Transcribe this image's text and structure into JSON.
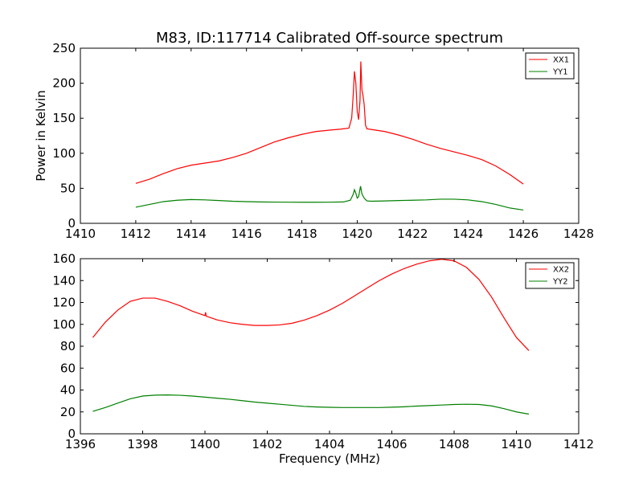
{
  "chart_data": [
    {
      "type": "line",
      "title": "M83, ID:117714 Calibrated Off-source spectrum",
      "xlabel": "",
      "ylabel": "Power in Kelvin",
      "xlim": [
        1410,
        1428
      ],
      "ylim": [
        0,
        250
      ],
      "xticks": [
        "1410",
        "1412",
        "1414",
        "1416",
        "1418",
        "1420",
        "1422",
        "1424",
        "1426",
        "1428"
      ],
      "yticks": [
        "0",
        "50",
        "100",
        "150",
        "200",
        "250"
      ],
      "grid": false,
      "legend_position": "top-right",
      "series": [
        {
          "name": "XX1",
          "color": "#ff0000",
          "points": [
            [
              1412.0,
              57
            ],
            [
              1412.5,
              63
            ],
            [
              1413.0,
              71
            ],
            [
              1413.5,
              78
            ],
            [
              1414.0,
              83
            ],
            [
              1414.5,
              86
            ],
            [
              1415.0,
              89
            ],
            [
              1415.5,
              94
            ],
            [
              1416.0,
              100
            ],
            [
              1416.5,
              108
            ],
            [
              1417.0,
              116
            ],
            [
              1417.5,
              122
            ],
            [
              1418.0,
              127
            ],
            [
              1418.5,
              131
            ],
            [
              1419.0,
              133
            ],
            [
              1419.4,
              134.5
            ],
            [
              1419.7,
              136
            ],
            [
              1419.8,
              150
            ],
            [
              1419.85,
              180
            ],
            [
              1419.9,
              217
            ],
            [
              1419.95,
              200
            ],
            [
              1420.0,
              160
            ],
            [
              1420.05,
              148
            ],
            [
              1420.1,
              175
            ],
            [
              1420.13,
              231
            ],
            [
              1420.17,
              190
            ],
            [
              1420.2,
              185
            ],
            [
              1420.25,
              170
            ],
            [
              1420.3,
              140
            ],
            [
              1420.35,
              135
            ],
            [
              1420.5,
              134
            ],
            [
              1421.0,
              131
            ],
            [
              1421.5,
              126
            ],
            [
              1422.0,
              120
            ],
            [
              1422.5,
              113
            ],
            [
              1423.0,
              107
            ],
            [
              1423.5,
              102
            ],
            [
              1424.0,
              97
            ],
            [
              1424.5,
              91
            ],
            [
              1425.0,
              82
            ],
            [
              1425.5,
              70
            ],
            [
              1426.0,
              56
            ]
          ]
        },
        {
          "name": "YY1",
          "color": "#008000",
          "points": [
            [
              1412.0,
              23
            ],
            [
              1412.5,
              27
            ],
            [
              1413.0,
              31
            ],
            [
              1413.5,
              33
            ],
            [
              1414.0,
              34
            ],
            [
              1414.5,
              33.5
            ],
            [
              1415.0,
              32.5
            ],
            [
              1415.5,
              31.5
            ],
            [
              1416.0,
              31
            ],
            [
              1416.5,
              30.5
            ],
            [
              1417.0,
              30.3
            ],
            [
              1417.5,
              30.2
            ],
            [
              1418.0,
              30.1
            ],
            [
              1418.5,
              30.1
            ],
            [
              1419.0,
              30.2
            ],
            [
              1419.5,
              30.5
            ],
            [
              1419.75,
              33
            ],
            [
              1419.85,
              41
            ],
            [
              1419.9,
              48
            ],
            [
              1419.95,
              43
            ],
            [
              1420.0,
              36
            ],
            [
              1420.05,
              38
            ],
            [
              1420.12,
              53
            ],
            [
              1420.17,
              42
            ],
            [
              1420.25,
              36
            ],
            [
              1420.35,
              32
            ],
            [
              1420.5,
              31.5
            ],
            [
              1421.0,
              32
            ],
            [
              1421.5,
              32.5
            ],
            [
              1422.0,
              33
            ],
            [
              1422.5,
              33.5
            ],
            [
              1423.0,
              34.5
            ],
            [
              1423.5,
              34.5
            ],
            [
              1424.0,
              33.5
            ],
            [
              1424.5,
              31
            ],
            [
              1425.0,
              27
            ],
            [
              1425.5,
              22
            ],
            [
              1426.0,
              19
            ]
          ]
        }
      ]
    },
    {
      "type": "line",
      "title": "",
      "xlabel": "Frequency (MHz)",
      "ylabel": "",
      "xlim": [
        1396,
        1412
      ],
      "ylim": [
        0,
        160
      ],
      "xticks": [
        "1396",
        "1398",
        "1400",
        "1402",
        "1404",
        "1406",
        "1408",
        "1410",
        "1412"
      ],
      "yticks": [
        "0",
        "20",
        "40",
        "60",
        "80",
        "100",
        "120",
        "140",
        "160"
      ],
      "grid": false,
      "legend_position": "top-right",
      "series": [
        {
          "name": "XX2",
          "color": "#ff0000",
          "points": [
            [
              1396.4,
              88
            ],
            [
              1396.8,
              102
            ],
            [
              1397.2,
              113
            ],
            [
              1397.6,
              121
            ],
            [
              1398.0,
              124
            ],
            [
              1398.4,
              124
            ],
            [
              1398.8,
              121
            ],
            [
              1399.2,
              117
            ],
            [
              1399.6,
              112
            ],
            [
              1400.0,
              108
            ],
            [
              1400.02,
              111
            ],
            [
              1400.04,
              107.5
            ],
            [
              1400.4,
              104
            ],
            [
              1400.8,
              101.5
            ],
            [
              1401.2,
              100
            ],
            [
              1401.6,
              99
            ],
            [
              1402.0,
              99
            ],
            [
              1402.4,
              99.5
            ],
            [
              1402.8,
              101
            ],
            [
              1403.2,
              104
            ],
            [
              1403.6,
              108
            ],
            [
              1404.0,
              113
            ],
            [
              1404.4,
              119
            ],
            [
              1404.8,
              126
            ],
            [
              1405.2,
              133
            ],
            [
              1405.6,
              140
            ],
            [
              1406.0,
              146
            ],
            [
              1406.4,
              151
            ],
            [
              1406.8,
              155
            ],
            [
              1407.2,
              158
            ],
            [
              1407.6,
              159.5
            ],
            [
              1408.0,
              158
            ],
            [
              1408.4,
              152
            ],
            [
              1408.8,
              141
            ],
            [
              1409.2,
              125
            ],
            [
              1409.6,
              106
            ],
            [
              1410.0,
              88
            ],
            [
              1410.4,
              76
            ]
          ]
        },
        {
          "name": "YY2",
          "color": "#008000",
          "points": [
            [
              1396.4,
              20.5
            ],
            [
              1396.8,
              24
            ],
            [
              1397.2,
              28
            ],
            [
              1397.6,
              32
            ],
            [
              1398.0,
              34.5
            ],
            [
              1398.4,
              35.3
            ],
            [
              1398.8,
              35.5
            ],
            [
              1399.2,
              35.2
            ],
            [
              1399.6,
              34.5
            ],
            [
              1400.0,
              33.5
            ],
            [
              1400.4,
              32.5
            ],
            [
              1400.8,
              31.5
            ],
            [
              1401.2,
              30.3
            ],
            [
              1401.6,
              29
            ],
            [
              1402.0,
              28
            ],
            [
              1402.4,
              27
            ],
            [
              1402.8,
              26
            ],
            [
              1403.2,
              25
            ],
            [
              1403.6,
              24.5
            ],
            [
              1404.0,
              24.2
            ],
            [
              1404.4,
              24
            ],
            [
              1404.8,
              24
            ],
            [
              1405.2,
              24
            ],
            [
              1405.6,
              24
            ],
            [
              1406.0,
              24.3
            ],
            [
              1406.4,
              24.7
            ],
            [
              1406.8,
              25.3
            ],
            [
              1407.2,
              25.8
            ],
            [
              1407.6,
              26.3
            ],
            [
              1408.0,
              26.8
            ],
            [
              1408.4,
              27
            ],
            [
              1408.8,
              26.8
            ],
            [
              1409.2,
              25.5
            ],
            [
              1409.6,
              23
            ],
            [
              1410.0,
              20
            ],
            [
              1410.4,
              18
            ]
          ]
        }
      ]
    }
  ]
}
